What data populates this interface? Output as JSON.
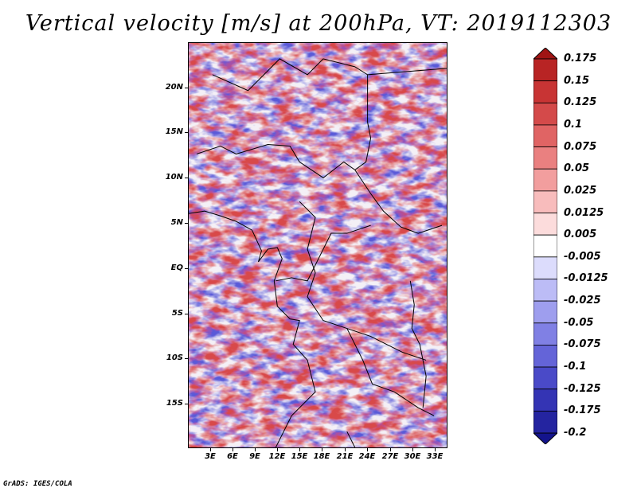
{
  "title": "Vertical velocity [m/s] at 200hPa, VT: 2019112303",
  "credit": "GrADS: IGES/COLA",
  "lat_labels": [
    "20N",
    "15N",
    "10N",
    "5N",
    "EQ",
    "5S",
    "10S",
    "15S"
  ],
  "lon_labels": [
    "3E",
    "6E",
    "9E",
    "12E",
    "15E",
    "18E",
    "21E",
    "24E",
    "27E",
    "30E",
    "33E"
  ],
  "colorbar": {
    "labels": [
      "0.175",
      "0.15",
      "0.125",
      "0.1",
      "0.075",
      "0.05",
      "0.025",
      "0.0125",
      "0.005",
      "-0.005",
      "-0.0125",
      "-0.025",
      "-0.05",
      "-0.075",
      "-0.1",
      "-0.125",
      "-0.175",
      "-0.2"
    ],
    "colors": [
      "#a01414",
      "#b82424",
      "#c83434",
      "#d44a4a",
      "#e06464",
      "#ea8080",
      "#f29e9e",
      "#f8bcbc",
      "#fcdcdc",
      "#ffffff",
      "#dcdcfc",
      "#bcbcf6",
      "#9e9eee",
      "#8080e4",
      "#6464d8",
      "#4a4ac8",
      "#3434b4",
      "#2424a0",
      "#14148c"
    ]
  }
}
